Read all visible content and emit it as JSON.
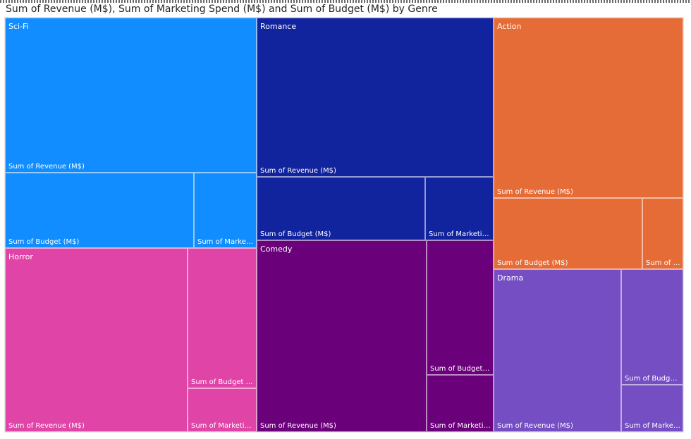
{
  "chart_data": {
    "type": "treemap",
    "title": "Sum of Revenue (M$), Sum of Marketing Spend (M$) and Sum of Budget (M$) by Genre",
    "measures": [
      "Sum of Revenue (M$)",
      "Sum of Budget (M$)",
      "Sum of Marketing Spend (M$)"
    ],
    "measure_display": {
      "Sum of Revenue (M$)": "Sum of Revenue (M$)",
      "Sum of Budget (M$)": "Sum of Budget (M$)",
      "Sum of Marketing Spend (M$)": "Sum of Marketing Spe..."
    },
    "genres": [
      {
        "name": "Sci-Fi",
        "color": "#118DFF",
        "values": {
          "Sum of Revenue (M$)": 80.6,
          "Sum of Budget (M$)": 29.5,
          "Sum of Marketing Spend (M$)": 9.8
        }
      },
      {
        "name": "Horror",
        "color": "#E044A7",
        "values": {
          "Sum of Revenue (M$)": 69.3,
          "Sum of Budget (M$)": 20.1,
          "Sum of Marketing Spend (M$)": 6.2
        }
      },
      {
        "name": "Romance",
        "color": "#12239E",
        "values": {
          "Sum of Revenue (M$)": 77.9,
          "Sum of Budget (M$)": 22.2,
          "Sum of Marketing Spend (M$)": 9.0
        }
      },
      {
        "name": "Comedy",
        "color": "#6B007B",
        "values": {
          "Sum of Revenue (M$)": 67.3,
          "Sum of Budget (M$)": 18.5,
          "Sum of Marketing Spend (M$)": 7.9
        }
      },
      {
        "name": "Action",
        "color": "#E66C37",
        "values": {
          "Sum of Revenue (M$)": 70.6,
          "Sum of Budget (M$)": 21.9,
          "Sum of Marketing Spend (M$)": 6.0
        }
      },
      {
        "name": "Drama",
        "color": "#744EC2",
        "values": {
          "Sum of Revenue (M$)": 43.0,
          "Sum of Budget (M$)": 14.8,
          "Sum of Marketing Spend (M$)": 6.0
        }
      }
    ],
    "legend": "none"
  }
}
